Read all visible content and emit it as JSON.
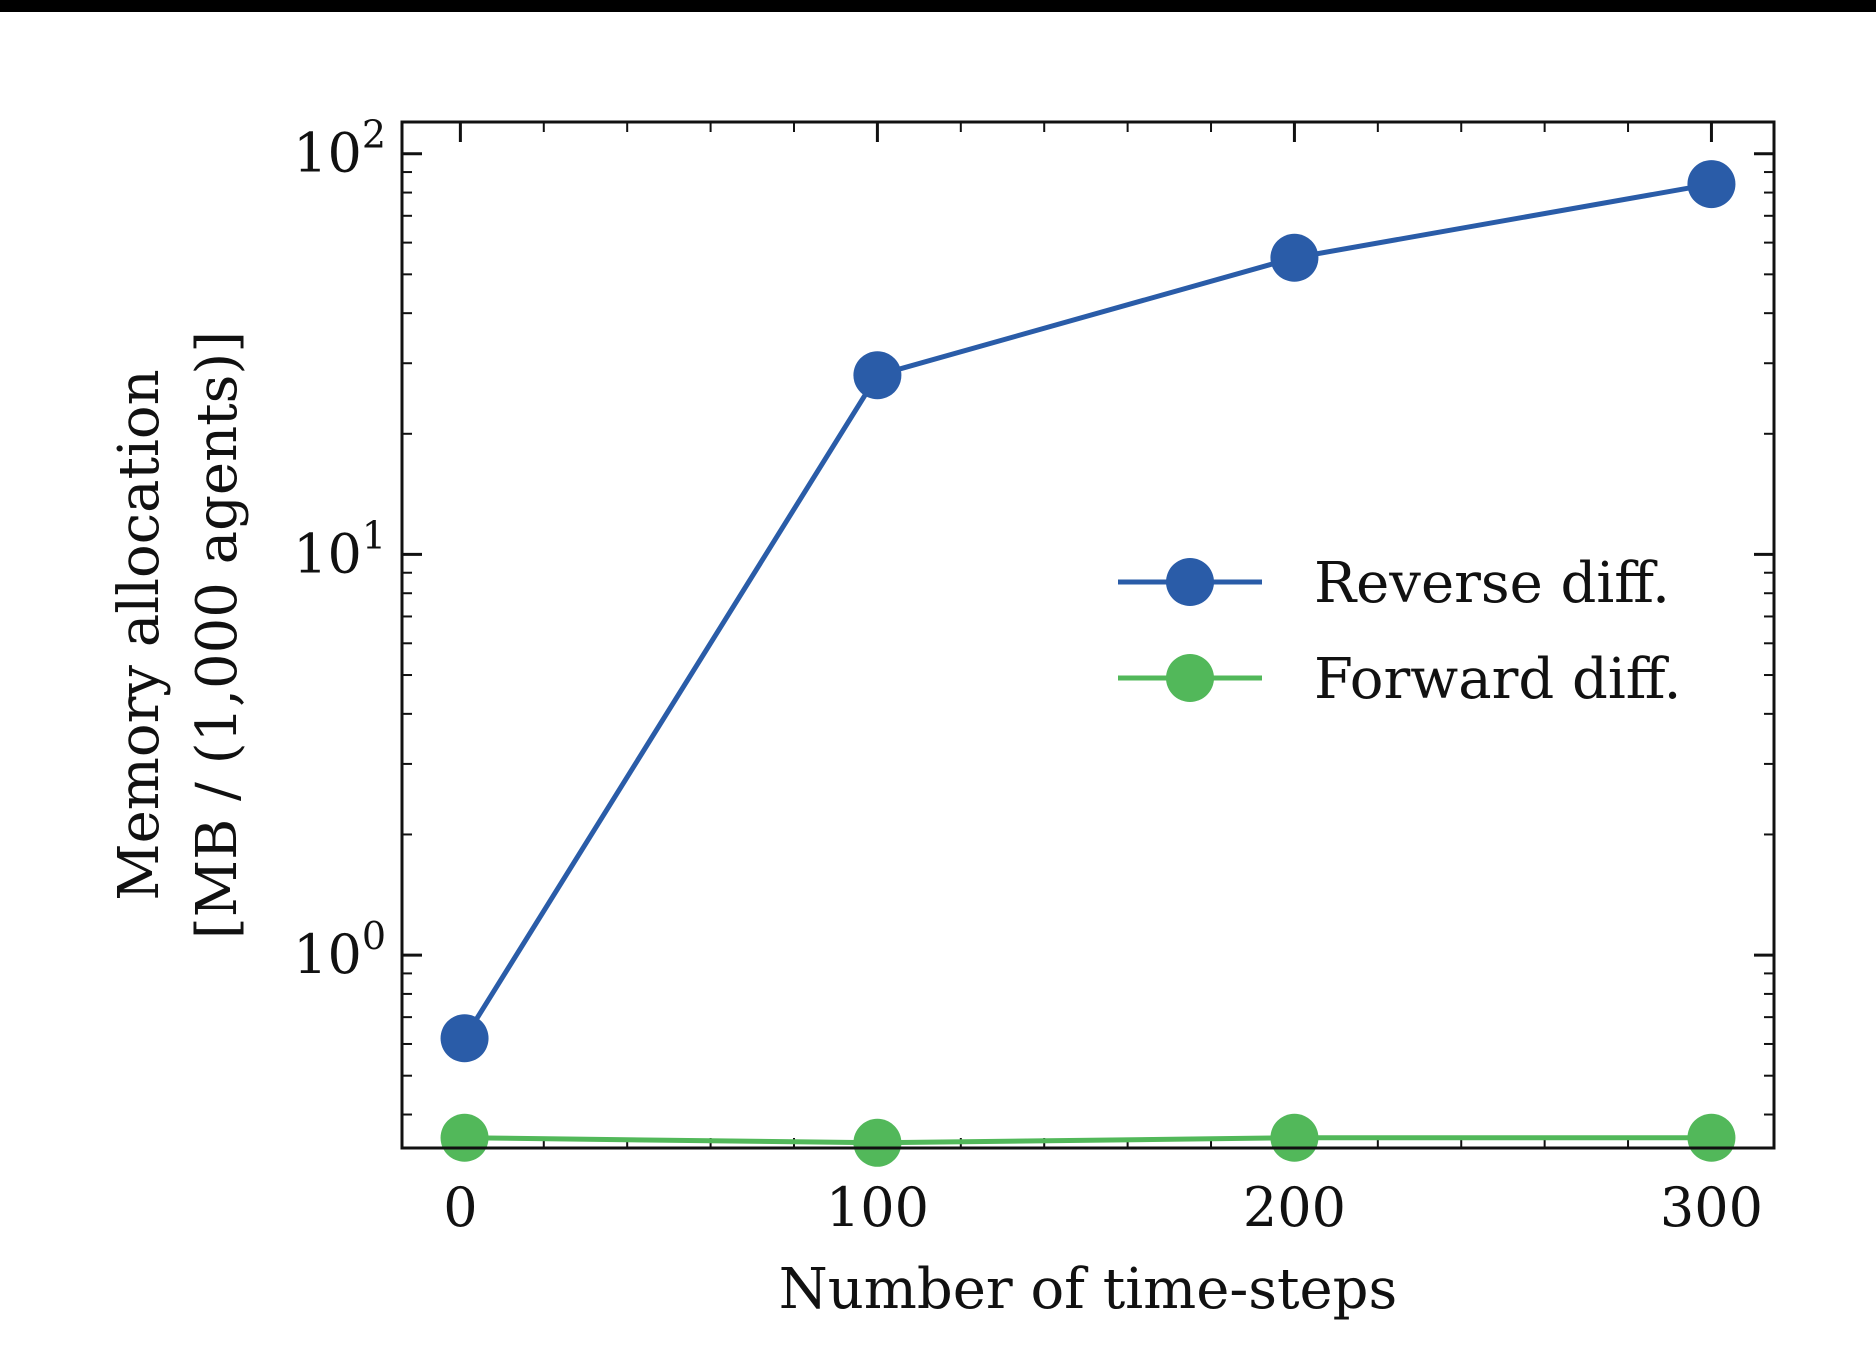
{
  "chart_data": {
    "type": "line",
    "xlabel": "Number of time-steps",
    "ylabel_line1": "Memory allocation",
    "ylabel_line2": "[MB / (1,000 agents)]",
    "yscale": "log",
    "xlim": [
      -14,
      315
    ],
    "ylim": [
      0.33,
      120
    ],
    "x_ticks": [
      0,
      100,
      200,
      300
    ],
    "x_tick_labels": [
      "0",
      "100",
      "200",
      "300"
    ],
    "y_ticks": [
      {
        "value": 1,
        "base": "10",
        "exp": "0"
      },
      {
        "value": 10,
        "base": "10",
        "exp": "1"
      },
      {
        "value": 100,
        "base": "10",
        "exp": "2"
      }
    ],
    "legend_position": "center-right",
    "series": [
      {
        "name": "Reverse diff.",
        "color": "#2a5ca8",
        "x": [
          1,
          100,
          200,
          300
        ],
        "y": [
          0.62,
          28,
          55,
          84
        ]
      },
      {
        "name": "Forward diff.",
        "color": "#52b85a",
        "x": [
          1,
          100,
          200,
          300
        ],
        "y": [
          0.35,
          0.34,
          0.35,
          0.35
        ]
      }
    ]
  }
}
